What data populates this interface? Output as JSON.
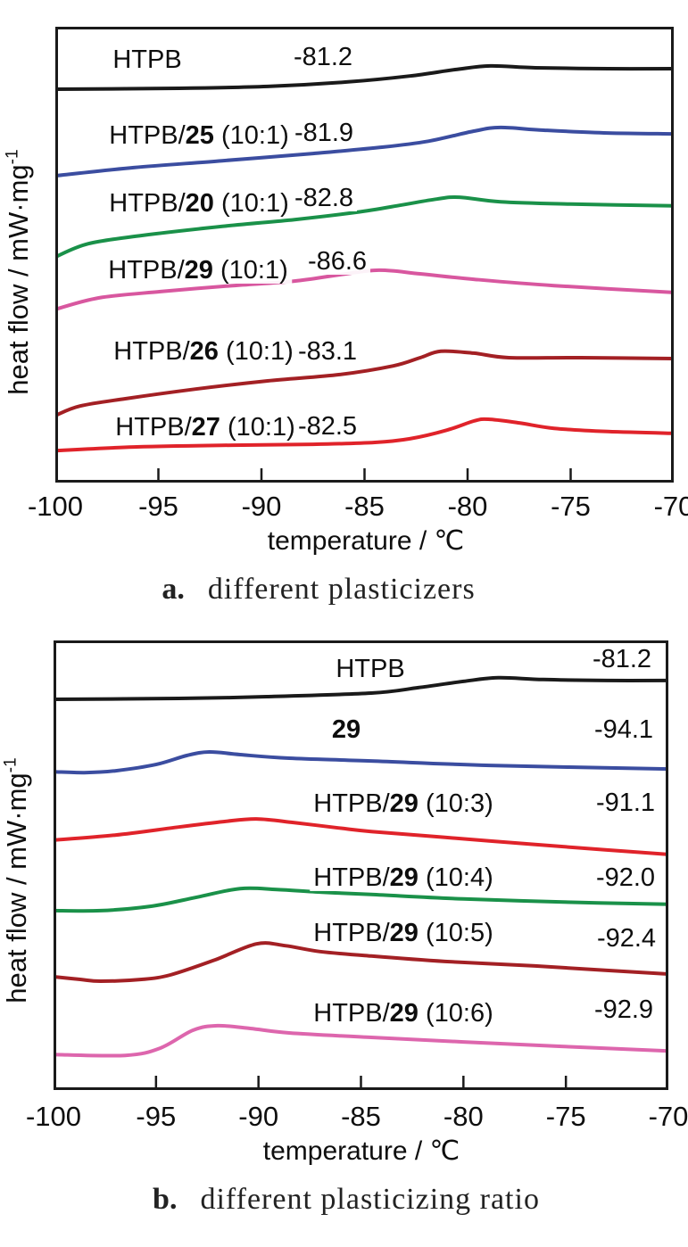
{
  "figure": {
    "y_axis_label": {
      "text": "heat flow / mW·mg",
      "superscript": "-1"
    },
    "x_axis_label": "temperature / ℃"
  },
  "captions": {
    "a": {
      "letter": "a.",
      "text": "different plasticizers"
    },
    "b": {
      "letter": "b.",
      "text": "different plasticizing ratio"
    }
  },
  "colors": {
    "black": "#1a1a1a",
    "blue": "#3b4da0",
    "green": "#1a9149",
    "pink_a": "#d8579f",
    "dark_red": "#a32024",
    "red": "#e0232a",
    "pink_b": "#dd66ad",
    "axis": "#1a1a1a"
  },
  "chart_data": [
    {
      "id": "a",
      "type": "line",
      "title": "different plasticizers",
      "xlabel": "temperature / ℃",
      "ylabel": "heat flow / mW·mg⁻¹",
      "x_range": [
        -100,
        -70
      ],
      "x_ticks": [
        -100,
        -95,
        -90,
        -85,
        -80,
        -75,
        -70
      ],
      "grid": false,
      "legend_position": "inline-annotations",
      "y_units": "normalized heat flow (0 = plot bottom, 1 = plot top)",
      "series": [
        {
          "label_prefix": "HTPB",
          "label_bold": "",
          "label_suffix": "",
          "tg": "-81.2",
          "color": "#1a1a1a",
          "points": [
            [
              -100,
              0.863
            ],
            [
              -94,
              0.865
            ],
            [
              -89.7,
              0.869
            ],
            [
              -85.8,
              0.879
            ],
            [
              -82.8,
              0.892
            ],
            [
              -80.6,
              0.906
            ],
            [
              -78.9,
              0.914
            ],
            [
              -76.7,
              0.91
            ],
            [
              -73.2,
              0.908
            ],
            [
              -70,
              0.908
            ]
          ]
        },
        {
          "label_prefix": "HTPB/",
          "label_bold": "25",
          "label_suffix": " (10:1)",
          "tg": "-81.9",
          "color": "#3b4da0",
          "points": [
            [
              -100,
              0.673
            ],
            [
              -96.2,
              0.691
            ],
            [
              -91.9,
              0.706
            ],
            [
              -87.5,
              0.722
            ],
            [
              -84.1,
              0.736
            ],
            [
              -81.9,
              0.749
            ],
            [
              -79.7,
              0.771
            ],
            [
              -78.4,
              0.779
            ],
            [
              -76.3,
              0.773
            ],
            [
              -73.2,
              0.767
            ],
            [
              -70,
              0.765
            ]
          ]
        },
        {
          "label_prefix": "HTPB/",
          "label_bold": "20",
          "label_suffix": " (10:1)",
          "tg": "-82.8",
          "color": "#1a9149",
          "points": [
            [
              -100,
              0.495
            ],
            [
              -98.4,
              0.524
            ],
            [
              -95.8,
              0.542
            ],
            [
              -91.9,
              0.562
            ],
            [
              -88.4,
              0.577
            ],
            [
              -85.4,
              0.593
            ],
            [
              -83.2,
              0.609
            ],
            [
              -81.5,
              0.622
            ],
            [
              -80.4,
              0.626
            ],
            [
              -78.4,
              0.616
            ],
            [
              -75,
              0.611
            ],
            [
              -70,
              0.607
            ]
          ]
        },
        {
          "label_prefix": "HTPB/",
          "label_bold": "29",
          "label_suffix": " (10:1)",
          "tg": "-86.6",
          "color": "#d8579f",
          "points": [
            [
              -100,
              0.38
            ],
            [
              -97.9,
              0.405
            ],
            [
              -94.9,
              0.419
            ],
            [
              -91.4,
              0.432
            ],
            [
              -88.4,
              0.442
            ],
            [
              -86.2,
              0.456
            ],
            [
              -84.3,
              0.466
            ],
            [
              -82.3,
              0.458
            ],
            [
              -79.7,
              0.446
            ],
            [
              -75.8,
              0.432
            ],
            [
              -70,
              0.417
            ]
          ]
        },
        {
          "label_prefix": "HTPB/",
          "label_bold": "26",
          "label_suffix": " (10:1)",
          "tg": "-83.1",
          "color": "#a32024",
          "points": [
            [
              -100,
              0.147
            ],
            [
              -98.8,
              0.168
            ],
            [
              -96.6,
              0.184
            ],
            [
              -93.2,
              0.205
            ],
            [
              -89.7,
              0.223
            ],
            [
              -86.2,
              0.237
            ],
            [
              -83.6,
              0.256
            ],
            [
              -82.3,
              0.274
            ],
            [
              -81.3,
              0.288
            ],
            [
              -79.7,
              0.284
            ],
            [
              -78,
              0.274
            ],
            [
              -74.5,
              0.274
            ],
            [
              -70,
              0.272
            ]
          ]
        },
        {
          "label_prefix": "HTPB/",
          "label_bold": "27",
          "label_suffix": " (10:1)",
          "tg": "-82.5",
          "color": "#e0232a",
          "points": [
            [
              -100,
              0.07
            ],
            [
              -96.2,
              0.078
            ],
            [
              -91.4,
              0.082
            ],
            [
              -87.5,
              0.084
            ],
            [
              -84.5,
              0.088
            ],
            [
              -82.8,
              0.096
            ],
            [
              -81,
              0.115
            ],
            [
              -79.7,
              0.135
            ],
            [
              -79,
              0.139
            ],
            [
              -77.5,
              0.131
            ],
            [
              -75.8,
              0.119
            ],
            [
              -73.2,
              0.112
            ],
            [
              -70,
              0.108
            ]
          ]
        }
      ]
    },
    {
      "id": "b",
      "type": "line",
      "title": "different plasticizing ratio",
      "xlabel": "temperature / ℃",
      "ylabel": "heat flow / mW·mg⁻¹",
      "x_range": [
        -100,
        -70
      ],
      "x_ticks": [
        -100,
        -95,
        -90,
        -85,
        -80,
        -75,
        -70
      ],
      "grid": false,
      "legend_position": "inline-annotations",
      "y_units": "normalized heat flow (0 = plot bottom, 1 = plot top)",
      "series": [
        {
          "label_prefix": "HTPB",
          "label_bold": "",
          "label_suffix": "",
          "tg": "-81.2",
          "color": "#1a1a1a",
          "points": [
            [
              -100,
              0.869
            ],
            [
              -93.9,
              0.871
            ],
            [
              -89.6,
              0.875
            ],
            [
              -84.5,
              0.883
            ],
            [
              -82.2,
              0.895
            ],
            [
              -80,
              0.909
            ],
            [
              -78.3,
              0.917
            ],
            [
              -76.1,
              0.913
            ],
            [
              -73,
              0.911
            ],
            [
              -70,
              0.911
            ]
          ]
        },
        {
          "label_prefix": "",
          "label_bold": "29",
          "label_suffix": "",
          "tg": "-94.1",
          "color": "#3b4da0",
          "points": [
            [
              -100,
              0.708
            ],
            [
              -98.5,
              0.706
            ],
            [
              -97,
              0.71
            ],
            [
              -95,
              0.724
            ],
            [
              -93.5,
              0.744
            ],
            [
              -92.4,
              0.752
            ],
            [
              -90.9,
              0.746
            ],
            [
              -88.5,
              0.738
            ],
            [
              -84.5,
              0.732
            ],
            [
              -78.7,
              0.722
            ],
            [
              -70,
              0.714
            ]
          ]
        },
        {
          "label_prefix": "HTPB/",
          "label_bold": "29",
          "label_suffix": " (10:3)",
          "tg": "-91.1",
          "color": "#e0232a",
          "points": [
            [
              -100,
              0.556
            ],
            [
              -97,
              0.567
            ],
            [
              -93.9,
              0.585
            ],
            [
              -91.7,
              0.597
            ],
            [
              -90.1,
              0.603
            ],
            [
              -88.3,
              0.595
            ],
            [
              -86.1,
              0.583
            ],
            [
              -84.5,
              0.575
            ],
            [
              -80.9,
              0.562
            ],
            [
              -76.5,
              0.546
            ],
            [
              -73,
              0.534
            ],
            [
              -70,
              0.524
            ]
          ]
        },
        {
          "label_prefix": "HTPB/",
          "label_bold": "29",
          "label_suffix": " (10:4)",
          "tg": "-92.0",
          "color": "#1a9149",
          "points": [
            [
              -100,
              0.399
            ],
            [
              -97.7,
              0.399
            ],
            [
              -95.2,
              0.409
            ],
            [
              -93,
              0.429
            ],
            [
              -90.9,
              0.448
            ],
            [
              -89.1,
              0.446
            ],
            [
              -86.9,
              0.44
            ],
            [
              -84.5,
              0.435
            ],
            [
              -80,
              0.425
            ],
            [
              -74.3,
              0.417
            ],
            [
              -70,
              0.413
            ]
          ]
        },
        {
          "label_prefix": "HTPB/",
          "label_bold": "29",
          "label_suffix": " (10:5)",
          "tg": "-92.4",
          "color": "#a32024",
          "points": [
            [
              -100,
              0.252
            ],
            [
              -98.7,
              0.246
            ],
            [
              -97.7,
              0.242
            ],
            [
              -95.7,
              0.246
            ],
            [
              -94.3,
              0.256
            ],
            [
              -92.2,
              0.288
            ],
            [
              -90.1,
              0.325
            ],
            [
              -88.7,
              0.321
            ],
            [
              -87,
              0.308
            ],
            [
              -84.5,
              0.298
            ],
            [
              -80.9,
              0.286
            ],
            [
              -76.5,
              0.276
            ],
            [
              -73,
              0.266
            ],
            [
              -70,
              0.258
            ]
          ]
        },
        {
          "label_prefix": "HTPB/",
          "label_bold": "29",
          "label_suffix": " (10:6)",
          "tg": "-92.9",
          "color": "#dd66ad",
          "points": [
            [
              -100,
              0.079
            ],
            [
              -96.5,
              0.077
            ],
            [
              -94.8,
              0.093
            ],
            [
              -93.2,
              0.133
            ],
            [
              -92,
              0.143
            ],
            [
              -90.4,
              0.137
            ],
            [
              -88.5,
              0.127
            ],
            [
              -84.5,
              0.117
            ],
            [
              -80,
              0.107
            ],
            [
              -75.2,
              0.097
            ],
            [
              -70,
              0.087
            ]
          ]
        }
      ]
    }
  ]
}
